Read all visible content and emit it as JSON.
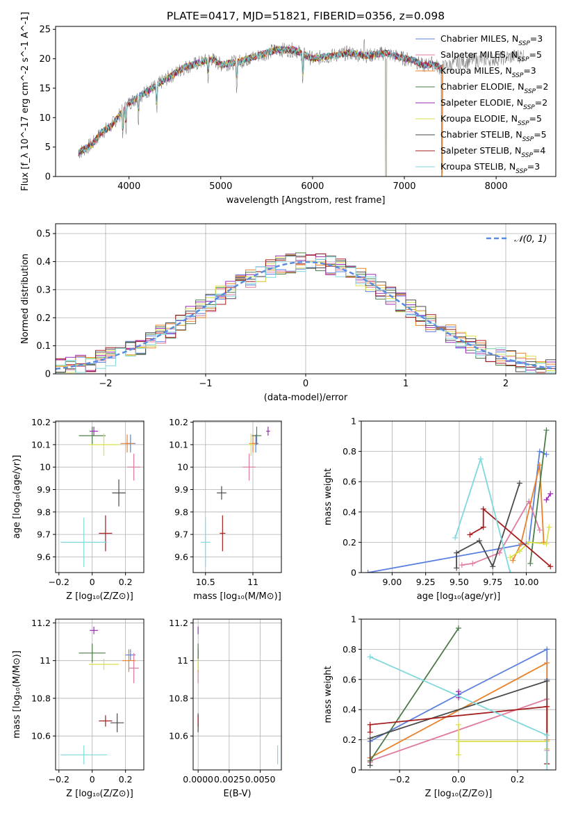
{
  "figure_title": "PLATE=0417, MJD=51821, FIBERID=0356, z=0.098",
  "model_colors": {
    "Chabrier MILES": "#5b7fe0",
    "Salpeter MILES": "#e07b9f",
    "Kroupa MILES": "#e8822a",
    "Chabrier ELODIE": "#4a7d48",
    "Salpeter ELODIE": "#9a2bb5",
    "Kroupa ELODIE": "#d8e04a",
    "Chabrier STELIB": "#4a4a4a",
    "Salpeter STELIB": "#a51d1d",
    "Kroupa STELIB": "#7ed8dd",
    "gaussian": "#5b8be0",
    "data": "#808080"
  },
  "chart_data": [
    {
      "id": "spectrum",
      "type": "line",
      "xlabel": "wavelength [Angstrom, rest frame]",
      "ylabel": "Flux [f_λ 10^-17 erg cm^-2 s^-1 A^-1]",
      "xlim": [
        3200,
        8650
      ],
      "ylim": [
        0,
        25.5
      ],
      "xticks": [
        4000,
        5000,
        6000,
        7000,
        8000
      ],
      "yticks": [
        0,
        5,
        10,
        15,
        20,
        25
      ],
      "grid": false,
      "legend_position": "top-right",
      "legend": [
        {
          "name": "Chabrier MILES",
          "nssp": "3"
        },
        {
          "name": "Salpeter MILES",
          "nssp": "5"
        },
        {
          "name": "Kroupa MILES",
          "nssp": "3"
        },
        {
          "name": "Chabrier ELODIE",
          "nssp": "2"
        },
        {
          "name": "Salpeter ELODIE",
          "nssp": "2"
        },
        {
          "name": "Kroupa ELODIE",
          "nssp": "5"
        },
        {
          "name": "Chabrier STELIB",
          "nssp": "5"
        },
        {
          "name": "Salpeter STELIB",
          "nssp": "4"
        },
        {
          "name": "Kroupa STELIB",
          "nssp": "3"
        }
      ],
      "continuum": {
        "x": [
          3450,
          3600,
          3700,
          3800,
          3900,
          4000,
          4100,
          4200,
          4300,
          4400,
          4500,
          4600,
          4700,
          4800,
          4900,
          5000,
          5200,
          5400,
          5600,
          5800,
          6000,
          6200,
          6400,
          6600,
          6800,
          7000,
          7100,
          7200,
          7300,
          7400
        ],
        "y": [
          4,
          5.5,
          7.5,
          8.5,
          10.5,
          12.5,
          13.5,
          14.5,
          15.5,
          16.5,
          17.5,
          18.5,
          19,
          19.5,
          20,
          19,
          19.5,
          20.5,
          21.5,
          21.5,
          20,
          20.5,
          21,
          20.5,
          21,
          20,
          19.8,
          18.8,
          19.2,
          18.2
        ]
      },
      "models": {
        "x": [
          3450,
          3600,
          3700,
          3800,
          3900,
          4000,
          4100,
          4200,
          4300,
          4400,
          4500,
          4600,
          4700,
          4800,
          4900,
          5000,
          5200,
          5400,
          5600,
          5800,
          6000,
          6200,
          6400,
          6600,
          6800,
          7000,
          7100,
          7200,
          7300,
          7400,
          7600,
          7800,
          8000,
          8200,
          8300
        ],
        "y": [
          4,
          5.5,
          7.5,
          8.5,
          10.5,
          12.5,
          13.5,
          14.5,
          15.5,
          16.5,
          17.5,
          18.5,
          19,
          19.5,
          20,
          19,
          19.5,
          20.5,
          21.5,
          21.5,
          20,
          20.5,
          21,
          20.5,
          21,
          20,
          19.8,
          18.8,
          19.2,
          18.4,
          19.5,
          19.8,
          20,
          20.4,
          20.6
        ]
      },
      "spectral_features": [
        {
          "x": 3934,
          "depth": 4.5
        },
        {
          "x": 3968,
          "depth": 3.5
        },
        {
          "x": 4102,
          "depth": 3.5
        },
        {
          "x": 4300,
          "depth": 4.5
        },
        {
          "x": 4861,
          "depth": 3.0
        },
        {
          "x": 5175,
          "depth": 4.0
        },
        {
          "x": 5893,
          "depth": 5.0
        },
        {
          "x": 6563,
          "depth": -3.5
        },
        {
          "x": 6800,
          "depth": 21.0
        },
        {
          "x": 7410,
          "depth": 18.0
        }
      ]
    },
    {
      "id": "residuals",
      "type": "area",
      "xlabel": "(data-model)/error",
      "ylabel": "Normed distribution",
      "xlim": [
        -2.5,
        2.5
      ],
      "ylim": [
        0,
        0.535
      ],
      "xticks": [
        -2,
        -1,
        0,
        1,
        2
      ],
      "yticks": [
        0.0,
        0.1,
        0.2,
        0.3,
        0.4,
        0.5
      ],
      "grid": true,
      "legend_position": "top-right",
      "legend": [
        {
          "name": "𝒩(0, 1)"
        }
      ],
      "bin_width": 0.1,
      "bin_start": -2.5
    },
    {
      "id": "age-vs-Z",
      "type": "scatter",
      "xlabel": "Z [log₁₀(Z/Z⊙)]",
      "ylabel": "age  [log₁₀(age/yr)]",
      "xlim": [
        -0.22,
        0.31
      ],
      "ylim": [
        9.53,
        10.205
      ],
      "xticks": [
        -0.2,
        0.0,
        0.2
      ],
      "yticks": [
        9.6,
        9.7,
        9.8,
        9.9,
        10.0,
        10.1,
        10.2
      ],
      "grid": true,
      "points": [
        {
          "model": "Chabrier MILES",
          "x": 0.23,
          "y": 10.105,
          "xerr": 0.03,
          "yerr": 0.04
        },
        {
          "model": "Salpeter MILES",
          "x": 0.25,
          "y": 10.0,
          "xerr": 0.04,
          "yerr": 0.06
        },
        {
          "model": "Kroupa MILES",
          "x": 0.21,
          "y": 10.105,
          "xerr": 0.04,
          "yerr": 0.04
        },
        {
          "model": "Chabrier ELODIE",
          "x": 0.0,
          "y": 10.14,
          "xerr": 0.08,
          "yerr": 0.04
        },
        {
          "model": "Salpeter ELODIE",
          "x": 0.01,
          "y": 10.16,
          "xerr": 0.025,
          "yerr": 0.02
        },
        {
          "model": "Kroupa ELODIE",
          "x": 0.07,
          "y": 10.1,
          "xerr": 0.09,
          "yerr": 0.05
        },
        {
          "model": "Chabrier STELIB",
          "x": 0.16,
          "y": 9.885,
          "xerr": 0.04,
          "yerr": 0.06
        },
        {
          "model": "Salpeter STELIB",
          "x": 0.08,
          "y": 9.705,
          "xerr": 0.04,
          "yerr": 0.08
        },
        {
          "model": "Kroupa STELIB",
          "x": -0.05,
          "y": 9.665,
          "xerr": 0.14,
          "yerr": 0.11
        }
      ]
    },
    {
      "id": "age-vs-mass",
      "type": "scatter",
      "xlabel": "mass [log₁₀(M/M⊙)]",
      "ylabel": "",
      "xlim": [
        10.37,
        11.3
      ],
      "ylim": [
        9.53,
        10.205
      ],
      "xticks": [
        10.5,
        11.0
      ],
      "yticks": [
        9.6,
        9.7,
        9.8,
        9.9,
        10.0,
        10.1,
        10.2
      ],
      "grid": true,
      "points": [
        {
          "model": "Chabrier MILES",
          "x": 11.03,
          "y": 10.105,
          "xerr": 0.03,
          "yerr": 0.04
        },
        {
          "model": "Salpeter MILES",
          "x": 10.96,
          "y": 10.0,
          "xerr": 0.07,
          "yerr": 0.06
        },
        {
          "model": "Kroupa MILES",
          "x": 11.0,
          "y": 10.105,
          "xerr": 0.04,
          "yerr": 0.04
        },
        {
          "model": "Chabrier ELODIE",
          "x": 11.04,
          "y": 10.14,
          "xerr": 0.05,
          "yerr": 0.04
        },
        {
          "model": "Salpeter ELODIE",
          "x": 11.16,
          "y": 10.16,
          "xerr": 0.02,
          "yerr": 0.02
        },
        {
          "model": "Kroupa ELODIE",
          "x": 10.98,
          "y": 10.1,
          "xerr": 0.03,
          "yerr": 0.05
        },
        {
          "model": "Chabrier STELIB",
          "x": 10.67,
          "y": 9.885,
          "xerr": 0.05,
          "yerr": 0.03
        },
        {
          "model": "Salpeter STELIB",
          "x": 10.68,
          "y": 9.705,
          "xerr": 0.03,
          "yerr": 0.08
        },
        {
          "model": "Kroupa STELIB",
          "x": 10.5,
          "y": 9.665,
          "xerr": 0.05,
          "yerr": 0.11
        }
      ]
    },
    {
      "id": "weight-vs-age",
      "type": "line",
      "xlabel": "age  [log₁₀(age/yr)]",
      "ylabel": "mass weight",
      "xlim": [
        8.77,
        10.22
      ],
      "ylim": [
        0,
        1
      ],
      "xticks": [
        9.0,
        9.25,
        9.5,
        9.75,
        10.0
      ],
      "xticklabels": [
        "9.00",
        "9.25",
        "9.50",
        "9.75",
        "10.00"
      ],
      "yticks": [
        0.0,
        0.2,
        0.4,
        0.6,
        0.8,
        1.0
      ],
      "grid": true,
      "series": [
        {
          "model": "Chabrier MILES",
          "x": [
            8.82,
            10.0,
            10.02,
            10.1,
            10.15
          ],
          "y": [
            0.0,
            0.19,
            0.2,
            0.8,
            0.78
          ]
        },
        {
          "model": "Salpeter MILES",
          "x": [
            9.52,
            9.6,
            9.8,
            10.02,
            10.1
          ],
          "y": [
            0.05,
            0.06,
            0.13,
            0.47,
            0.28
          ]
        },
        {
          "model": "Kroupa MILES",
          "x": [
            9.9,
            9.96,
            10.1,
            10.13
          ],
          "y": [
            0.08,
            0.19,
            0.71,
            0.2
          ]
        },
        {
          "model": "Chabrier ELODIE",
          "x": [
            10.03,
            10.15
          ],
          "y": [
            0.06,
            0.94
          ]
        },
        {
          "model": "Salpeter ELODIE",
          "x": [
            10.15,
            10.18
          ],
          "y": [
            0.48,
            0.52
          ]
        },
        {
          "model": "Kroupa ELODIE",
          "x": [
            9.88,
            9.95,
            10.02,
            10.15,
            10.17
          ],
          "y": [
            0.1,
            0.14,
            0.2,
            0.19,
            0.3
          ]
        },
        {
          "model": "Chabrier STELIB",
          "x": [
            9.48,
            9.48,
            9.65,
            9.75,
            9.95
          ],
          "y": [
            0.03,
            0.13,
            0.21,
            0.04,
            0.59
          ]
        },
        {
          "model": "Salpeter STELIB",
          "x": [
            9.58,
            9.68,
            9.68,
            10.18
          ],
          "y": [
            0.25,
            0.3,
            0.42,
            0.04
          ]
        },
        {
          "model": "Kroupa STELIB",
          "x": [
            9.47,
            9.66,
            9.88
          ],
          "y": [
            0.23,
            0.75,
            0.0
          ]
        }
      ]
    },
    {
      "id": "mass-vs-Z",
      "type": "scatter",
      "xlabel": "Z [log₁₀(Z/Z⊙)]",
      "ylabel": "mass [log₁₀(M/M⊙)]",
      "xlim": [
        -0.22,
        0.31
      ],
      "ylim": [
        10.42,
        11.22
      ],
      "xticks": [
        -0.2,
        0.0,
        0.2
      ],
      "yticks": [
        10.6,
        10.8,
        11.0,
        11.2
      ],
      "grid": true,
      "points": [
        {
          "model": "Chabrier MILES",
          "x": 0.23,
          "y": 11.03,
          "xerr": 0.03,
          "yerr": 0.03
        },
        {
          "model": "Salpeter MILES",
          "x": 0.25,
          "y": 10.96,
          "xerr": 0.03,
          "yerr": 0.08
        },
        {
          "model": "Kroupa MILES",
          "x": 0.22,
          "y": 11.0,
          "xerr": 0.04,
          "yerr": 0.06
        },
        {
          "model": "Chabrier ELODIE",
          "x": 0.0,
          "y": 11.04,
          "xerr": 0.08,
          "yerr": 0.05
        },
        {
          "model": "Salpeter ELODIE",
          "x": 0.01,
          "y": 11.16,
          "xerr": 0.025,
          "yerr": 0.02
        },
        {
          "model": "Kroupa ELODIE",
          "x": 0.07,
          "y": 10.98,
          "xerr": 0.09,
          "yerr": 0.03
        },
        {
          "model": "Chabrier STELIB",
          "x": 0.15,
          "y": 10.67,
          "xerr": 0.04,
          "yerr": 0.05
        },
        {
          "model": "Salpeter STELIB",
          "x": 0.08,
          "y": 10.68,
          "xerr": 0.04,
          "yerr": 0.03
        },
        {
          "model": "Kroupa STELIB",
          "x": -0.05,
          "y": 10.5,
          "xerr": 0.14,
          "yerr": 0.05
        }
      ]
    },
    {
      "id": "mass-vs-EBV",
      "type": "scatter",
      "xlabel": "E(B-V)",
      "ylabel": "",
      "xlim": [
        -0.0004,
        0.0067
      ],
      "ylim": [
        10.42,
        11.22
      ],
      "xticks": [
        0.0,
        0.0025,
        0.005
      ],
      "xticklabels": [
        "0.0000",
        "0.0025",
        "0.0050"
      ],
      "yticks": [
        10.6,
        10.8,
        11.0,
        11.2
      ],
      "grid": true,
      "points": [
        {
          "model": "Chabrier MILES",
          "x": 0.0,
          "y": 11.03,
          "xerr": 0.0,
          "yerr": 0.03
        },
        {
          "model": "Salpeter MILES",
          "x": 0.0,
          "y": 10.96,
          "xerr": 0.0,
          "yerr": 0.08
        },
        {
          "model": "Kroupa MILES",
          "x": 0.0,
          "y": 11.0,
          "xerr": 0.0,
          "yerr": 0.06
        },
        {
          "model": "Chabrier ELODIE",
          "x": 0.0,
          "y": 11.04,
          "xerr": 0.0,
          "yerr": 0.05
        },
        {
          "model": "Salpeter ELODIE",
          "x": 0.0,
          "y": 11.16,
          "xerr": 0.0,
          "yerr": 0.02
        },
        {
          "model": "Kroupa ELODIE",
          "x": 0.0,
          "y": 10.98,
          "xerr": 0.0,
          "yerr": 0.03
        },
        {
          "model": "Chabrier STELIB",
          "x": 0.0,
          "y": 10.67,
          "xerr": 0.0,
          "yerr": 0.05
        },
        {
          "model": "Salpeter STELIB",
          "x": 0.0,
          "y": 10.68,
          "xerr": 0.0,
          "yerr": 0.03
        },
        {
          "model": "Kroupa STELIB",
          "x": 0.0064,
          "y": 10.5,
          "xerr": 0.0,
          "yerr": 0.05
        }
      ]
    },
    {
      "id": "weight-vs-Z",
      "type": "line",
      "xlabel": "Z [log₁₀(Z/Z⊙)]",
      "ylabel": "mass weight",
      "xlim": [
        -0.33,
        0.33
      ],
      "ylim": [
        0,
        1
      ],
      "xticks": [
        -0.2,
        0.0,
        0.2
      ],
      "xticklabels": [
        "−0.2",
        "0.0",
        "0.2"
      ],
      "yticks": [
        0.0,
        0.2,
        0.4,
        0.6,
        0.8,
        1.0
      ],
      "grid": true,
      "series": [
        {
          "model": "Chabrier MILES",
          "x": [
            -0.3,
            0.0,
            0.3,
            0.3
          ],
          "y": [
            0.19,
            0.5,
            0.8,
            0.6
          ]
        },
        {
          "model": "Salpeter MILES",
          "x": [
            -0.3,
            -0.3,
            0.3,
            0.3
          ],
          "y": [
            0.05,
            0.06,
            0.47,
            0.13
          ]
        },
        {
          "model": "Kroupa MILES",
          "x": [
            -0.3,
            0.3,
            0.3
          ],
          "y": [
            0.08,
            0.71,
            0.2
          ]
        },
        {
          "model": "Chabrier ELODIE",
          "x": [
            -0.3,
            0.0
          ],
          "y": [
            0.06,
            0.94
          ]
        },
        {
          "model": "Salpeter ELODIE",
          "x": [
            0.0,
            0.0
          ],
          "y": [
            0.48,
            0.52
          ]
        },
        {
          "model": "Kroupa ELODIE",
          "x": [
            0.0,
            0.0,
            0.0,
            0.3,
            0.3
          ],
          "y": [
            0.1,
            0.3,
            0.19,
            0.19,
            0.14
          ]
        },
        {
          "model": "Chabrier STELIB",
          "x": [
            -0.3,
            -0.3,
            0.3,
            0.3
          ],
          "y": [
            0.03,
            0.21,
            0.59,
            0.04
          ]
        },
        {
          "model": "Salpeter STELIB",
          "x": [
            -0.3,
            -0.3,
            0.3,
            0.3
          ],
          "y": [
            0.25,
            0.3,
            0.42,
            0.04
          ]
        },
        {
          "model": "Kroupa STELIB",
          "x": [
            -0.3,
            0.3,
            0.3
          ],
          "y": [
            0.75,
            0.23,
            0.0
          ]
        }
      ]
    }
  ]
}
